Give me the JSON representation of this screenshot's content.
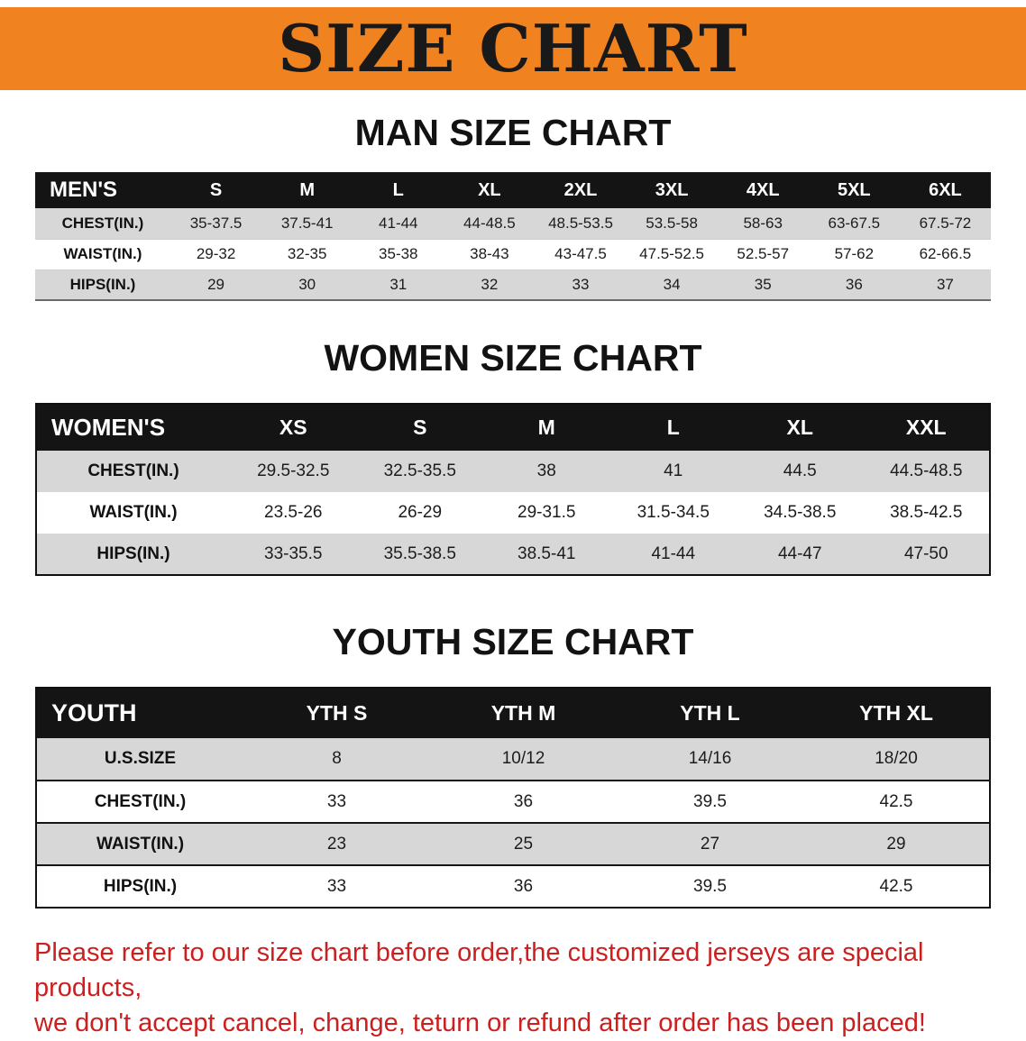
{
  "banner": {
    "title": "SIZE CHART"
  },
  "sections": [
    {
      "id": "men",
      "heading": "MAN SIZE CHART",
      "table": {
        "header": [
          "MEN'S",
          "S",
          "M",
          "L",
          "XL",
          "2XL",
          "3XL",
          "4XL",
          "5XL",
          "6XL"
        ],
        "rows": [
          [
            "CHEST(IN.)",
            "35-37.5",
            "37.5-41",
            "41-44",
            "44-48.5",
            "48.5-53.5",
            "53.5-58",
            "58-63",
            "63-67.5",
            "67.5-72"
          ],
          [
            "WAIST(IN.)",
            "29-32",
            "32-35",
            "35-38",
            "38-43",
            "43-47.5",
            "47.5-52.5",
            "52.5-57",
            "57-62",
            "62-66.5"
          ],
          [
            "HIPS(IN.)",
            "29",
            "30",
            "31",
            "32",
            "33",
            "34",
            "35",
            "36",
            "37"
          ]
        ]
      }
    },
    {
      "id": "women",
      "heading": "WOMEN SIZE CHART",
      "table": {
        "header": [
          "WOMEN'S",
          "XS",
          "S",
          "M",
          "L",
          "XL",
          "XXL"
        ],
        "rows": [
          [
            "CHEST(IN.)",
            "29.5-32.5",
            "32.5-35.5",
            "38",
            "41",
            "44.5",
            "44.5-48.5"
          ],
          [
            "WAIST(IN.)",
            "23.5-26",
            "26-29",
            "29-31.5",
            "31.5-34.5",
            "34.5-38.5",
            "38.5-42.5"
          ],
          [
            "HIPS(IN.)",
            "33-35.5",
            "35.5-38.5",
            "38.5-41",
            "41-44",
            "44-47",
            "47-50"
          ]
        ]
      }
    },
    {
      "id": "youth",
      "heading": "YOUTH SIZE CHART",
      "table": {
        "header": [
          "YOUTH",
          "YTH S",
          "YTH M",
          "YTH L",
          "YTH XL"
        ],
        "rows": [
          [
            "U.S.SIZE",
            "8",
            "10/12",
            "14/16",
            "18/20"
          ],
          [
            "CHEST(IN.)",
            "33",
            "36",
            "39.5",
            "42.5"
          ],
          [
            "WAIST(IN.)",
            "23",
            "25",
            "27",
            "29"
          ],
          [
            "HIPS(IN.)",
            "33",
            "36",
            "39.5",
            "42.5"
          ]
        ]
      }
    }
  ],
  "disclaimer": {
    "line1": "Please refer to our size chart before order,the customized jerseys are special products,",
    "line2": "we don't accept cancel, change, teturn or refund after order has been placed!"
  },
  "colors": {
    "banner_orange": "#f0831f",
    "header_black": "#141414",
    "row_gray": "#d7d7d7",
    "disclaimer_red": "#cc1f1f"
  }
}
